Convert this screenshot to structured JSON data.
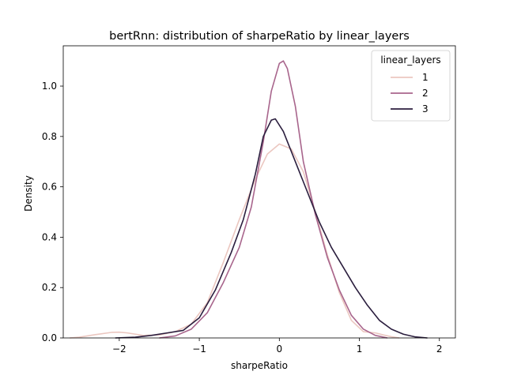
{
  "chart_data": {
    "type": "line",
    "title": "bertRnn: distribution of sharpeRatio by linear_layers",
    "xlabel": "sharpeRatio",
    "ylabel": "Density",
    "xlim": [
      -2.7,
      2.2
    ],
    "ylim": [
      0,
      1.16
    ],
    "x_ticks": [
      -2,
      -1,
      0,
      1,
      2
    ],
    "x_tick_labels": [
      "−2",
      "−1",
      "0",
      "1",
      "2"
    ],
    "y_ticks": [
      0.0,
      0.2,
      0.4,
      0.6,
      0.8,
      1.0
    ],
    "y_tick_labels": [
      "0.0",
      "0.2",
      "0.4",
      "0.6",
      "0.8",
      "1.0"
    ],
    "grid": false,
    "legend": {
      "title": "linear_layers",
      "placement": "top-right"
    },
    "series": [
      {
        "name": "1",
        "color": "#ebc7c0",
        "points": [
          [
            -2.62,
            0.0
          ],
          [
            -2.5,
            0.003
          ],
          [
            -2.3,
            0.013
          ],
          [
            -2.1,
            0.022
          ],
          [
            -2.0,
            0.023
          ],
          [
            -1.9,
            0.02
          ],
          [
            -1.7,
            0.01
          ],
          [
            -1.5,
            0.012
          ],
          [
            -1.3,
            0.025
          ],
          [
            -1.1,
            0.055
          ],
          [
            -0.9,
            0.14
          ],
          [
            -0.7,
            0.3
          ],
          [
            -0.5,
            0.47
          ],
          [
            -0.3,
            0.63
          ],
          [
            -0.15,
            0.73
          ],
          [
            0.0,
            0.77
          ],
          [
            0.15,
            0.75
          ],
          [
            0.3,
            0.66
          ],
          [
            0.45,
            0.5
          ],
          [
            0.6,
            0.33
          ],
          [
            0.75,
            0.18
          ],
          [
            0.9,
            0.07
          ],
          [
            1.05,
            0.025
          ],
          [
            1.2,
            0.02
          ],
          [
            1.3,
            0.012
          ],
          [
            1.4,
            0.005
          ],
          [
            1.5,
            0.0
          ]
        ]
      },
      {
        "name": "2",
        "color": "#a8658c",
        "points": [
          [
            -1.5,
            0.0
          ],
          [
            -1.3,
            0.008
          ],
          [
            -1.1,
            0.035
          ],
          [
            -0.9,
            0.1
          ],
          [
            -0.7,
            0.22
          ],
          [
            -0.5,
            0.36
          ],
          [
            -0.35,
            0.52
          ],
          [
            -0.2,
            0.78
          ],
          [
            -0.1,
            0.98
          ],
          [
            0.0,
            1.09
          ],
          [
            0.05,
            1.1
          ],
          [
            0.1,
            1.07
          ],
          [
            0.2,
            0.92
          ],
          [
            0.3,
            0.7
          ],
          [
            0.45,
            0.49
          ],
          [
            0.6,
            0.32
          ],
          [
            0.75,
            0.19
          ],
          [
            0.9,
            0.09
          ],
          [
            1.05,
            0.035
          ],
          [
            1.2,
            0.01
          ],
          [
            1.35,
            0.0
          ]
        ]
      },
      {
        "name": "3",
        "color": "#2b1e3e",
        "points": [
          [
            -2.05,
            0.0
          ],
          [
            -1.8,
            0.003
          ],
          [
            -1.6,
            0.01
          ],
          [
            -1.4,
            0.02
          ],
          [
            -1.2,
            0.03
          ],
          [
            -1.0,
            0.08
          ],
          [
            -0.8,
            0.19
          ],
          [
            -0.6,
            0.34
          ],
          [
            -0.45,
            0.47
          ],
          [
            -0.3,
            0.65
          ],
          [
            -0.2,
            0.8
          ],
          [
            -0.1,
            0.865
          ],
          [
            -0.05,
            0.87
          ],
          [
            0.05,
            0.82
          ],
          [
            0.2,
            0.7
          ],
          [
            0.35,
            0.58
          ],
          [
            0.5,
            0.46
          ],
          [
            0.65,
            0.36
          ],
          [
            0.8,
            0.28
          ],
          [
            0.95,
            0.2
          ],
          [
            1.1,
            0.13
          ],
          [
            1.25,
            0.07
          ],
          [
            1.4,
            0.035
          ],
          [
            1.55,
            0.015
          ],
          [
            1.7,
            0.004
          ],
          [
            1.85,
            0.0
          ]
        ]
      }
    ]
  }
}
